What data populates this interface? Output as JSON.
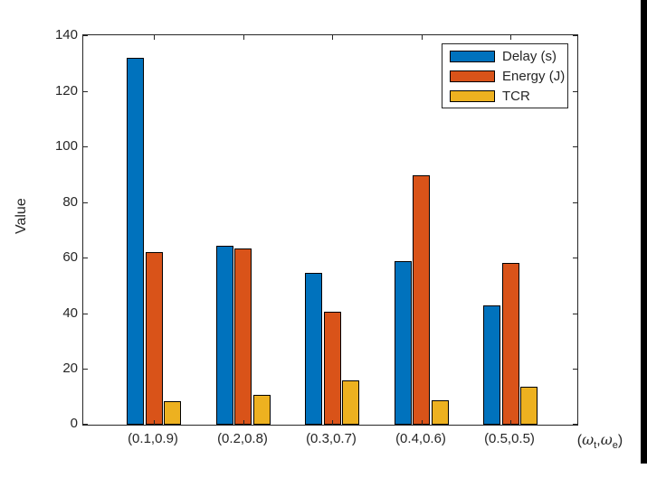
{
  "figure": {
    "background_color": "#ffffff",
    "right_edge_strip_color": "#000000",
    "axis_color": "#262626",
    "bar_edge_color": "#000000"
  },
  "chart_data": {
    "type": "bar",
    "title": "",
    "categories": [
      "(0.1,0.9)",
      "(0.2,0.8)",
      "(0.3,0.7)",
      "(0.4,0.6)",
      "(0.5,0.5)"
    ],
    "series": [
      {
        "name": "Delay (s)",
        "color": "#0072BD",
        "values": [
          131.8,
          64.3,
          54.5,
          58.8,
          42.8
        ]
      },
      {
        "name": "Energy (J)",
        "color": "#D95319",
        "values": [
          62.0,
          63.2,
          40.6,
          89.5,
          58.1
        ]
      },
      {
        "name": "TCR",
        "color": "#EDB120",
        "values": [
          8.3,
          10.7,
          15.8,
          8.7,
          13.5
        ]
      }
    ],
    "xlabel": "(ω_t,ω_e)",
    "ylabel": "Value",
    "ylim": [
      0,
      140
    ],
    "yticks": [
      0,
      20,
      40,
      60,
      80,
      100,
      120,
      140
    ],
    "grid": false,
    "legend_position": "northeast",
    "legend_entries": [
      "Delay (s)",
      "Energy (J)",
      "TCR"
    ]
  }
}
